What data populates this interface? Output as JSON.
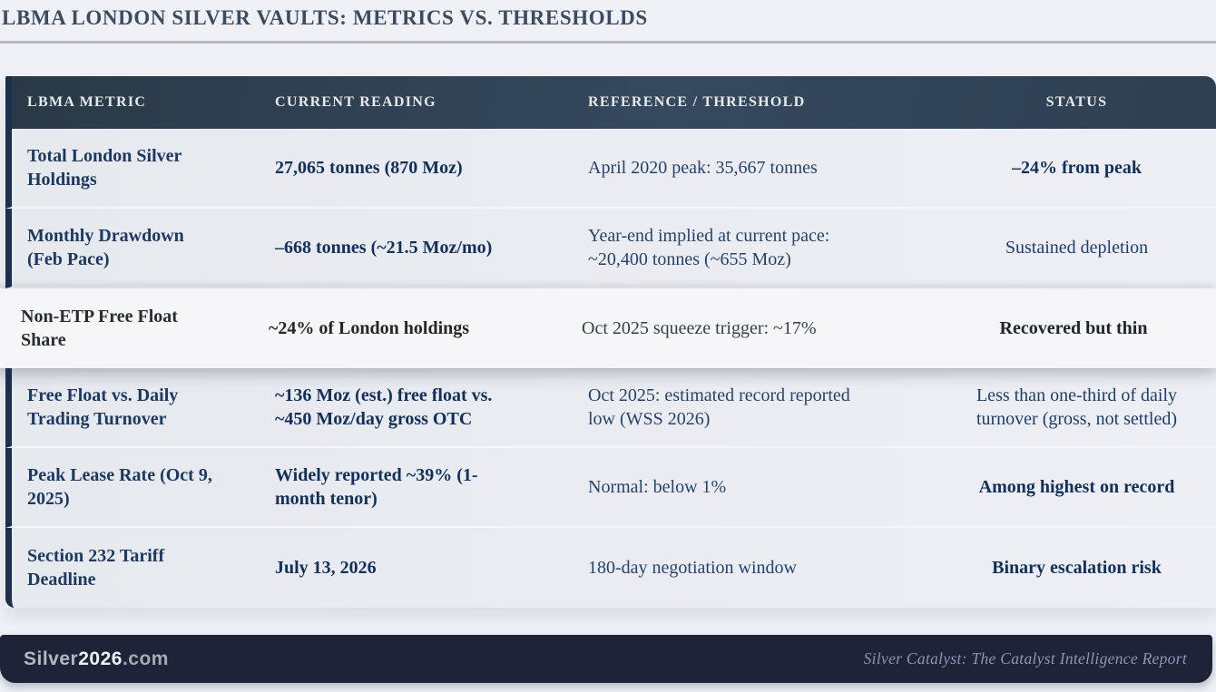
{
  "palette": {
    "page_bg": "#eff1f6",
    "header_bg": "#32455a",
    "row_bg": "#e8eaef",
    "highlight_row_bg": "#f6f6f8",
    "accent_navy_border": "#1b2f4e",
    "footer_bg": "#1e2338",
    "text_navy": "#1c3a61"
  },
  "title": "LBMA LONDON SILVER VAULTS: METRICS VS. THRESHOLDS",
  "table": {
    "columns": [
      "LBMA METRIC",
      "CURRENT READING",
      "REFERENCE / THRESHOLD",
      "STATUS"
    ],
    "rows": [
      {
        "metric": "Total London Silver Holdings",
        "current": "27,065 tonnes (870 Moz)",
        "reference": "April 2020 peak: 35,667 tonnes",
        "status": "–24% from peak",
        "status_bold": true,
        "highlight": false
      },
      {
        "metric": "Monthly Drawdown (Feb Pace)",
        "current": "–668 tonnes (~21.5 Moz/mo)",
        "reference": "Year-end implied at current pace: ~20,400 tonnes (~655 Moz)",
        "status": "Sustained depletion",
        "status_bold": false,
        "highlight": false
      },
      {
        "metric": "Non-ETP Free Float Share",
        "current": "~24% of London holdings",
        "reference": "Oct 2025 squeeze trigger: ~17%",
        "status": "Recovered but thin",
        "status_bold": true,
        "highlight": true
      },
      {
        "metric": "Free Float vs. Daily Trading Turnover",
        "current": "~136 Moz (est.) free float vs. ~450 Moz/day gross OTC",
        "reference": "Oct 2025: estimated record reported low (WSS 2026)",
        "status": "Less than one-third of daily turnover (gross, not settled)",
        "status_bold": false,
        "highlight": false
      },
      {
        "metric": "Peak Lease Rate (Oct 9, 2025)",
        "current": "Widely reported ~39% (1-month tenor)",
        "reference": "Normal: below 1%",
        "status": "Among highest on record",
        "status_bold": true,
        "highlight": false
      },
      {
        "metric": "Section 232 Tariff Deadline",
        "current": "July 13, 2026",
        "reference": "180-day negotiation window",
        "status": "Binary escalation risk",
        "status_bold": true,
        "highlight": false
      }
    ]
  },
  "footer": {
    "brand_prefix": "Silver",
    "brand_year": "2026",
    "brand_suffix": ".com",
    "tagline": "Silver Catalyst: The Catalyst Intelligence Report"
  }
}
